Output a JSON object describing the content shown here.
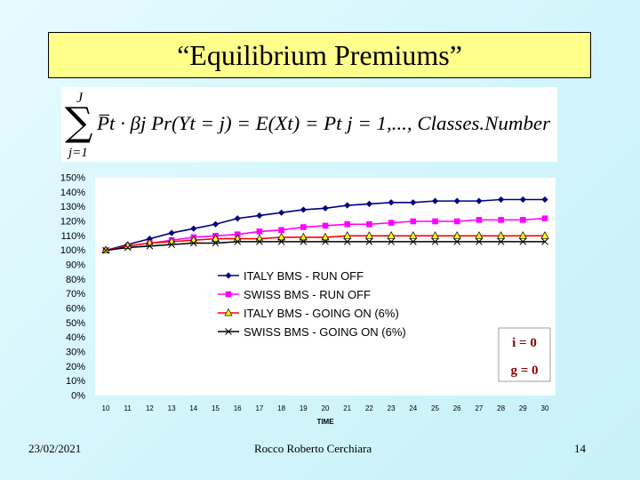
{
  "slide": {
    "title": "“Equilibrium Premiums”",
    "date": "23/02/2021",
    "author": "Rocco Roberto Cerchiara",
    "page_number": "14"
  },
  "formula": {
    "sum_upper": "J",
    "sum_lower": "j=1",
    "text": "P̅t · βj Pr(Yt = j) = E(Xt) = Pt     j = 1,..., Classes.Number"
  },
  "chart_data": {
    "type": "line",
    "x": [
      10,
      11,
      12,
      13,
      14,
      15,
      16,
      17,
      18,
      19,
      20,
      21,
      22,
      23,
      24,
      25,
      26,
      27,
      28,
      29,
      30
    ],
    "xlabel": "TIME",
    "ylabel": "",
    "ylim": [
      0,
      150
    ],
    "yticks": [
      "0%",
      "10%",
      "20%",
      "30%",
      "40%",
      "50%",
      "60%",
      "70%",
      "80%",
      "90%",
      "100%",
      "110%",
      "120%",
      "130%",
      "140%",
      "150%"
    ],
    "legend_position": "center",
    "annotations": [
      "i = 0",
      "g = 0"
    ],
    "series": [
      {
        "name": "ITALY BMS - RUN OFF",
        "color": "#000080",
        "marker": "diamond",
        "values": [
          100,
          104,
          108,
          112,
          115,
          118,
          122,
          124,
          126,
          128,
          129,
          131,
          132,
          133,
          133,
          134,
          134,
          134,
          135,
          135,
          135
        ]
      },
      {
        "name": "SWISS BMS - RUN OFF",
        "color": "#ff00ff",
        "marker": "square",
        "values": [
          100,
          103,
          105,
          107,
          109,
          110,
          111,
          113,
          114,
          116,
          117,
          118,
          118,
          119,
          120,
          120,
          120,
          121,
          121,
          121,
          122
        ]
      },
      {
        "name": "ITALY BMS - GOING ON (6%)",
        "color": "#ff0000",
        "marker": "triangle",
        "values": [
          100,
          103,
          105,
          106,
          107,
          108,
          108,
          108,
          109,
          109,
          109,
          110,
          110,
          110,
          110,
          110,
          110,
          110,
          110,
          110,
          110
        ]
      },
      {
        "name": "SWISS BMS - GOING ON (6%)",
        "color": "#000000",
        "marker": "x",
        "values": [
          100,
          102,
          103,
          104,
          105,
          105,
          106,
          106,
          106,
          106,
          106,
          106,
          106,
          106,
          106,
          106,
          106,
          106,
          106,
          106,
          106
        ]
      }
    ]
  }
}
